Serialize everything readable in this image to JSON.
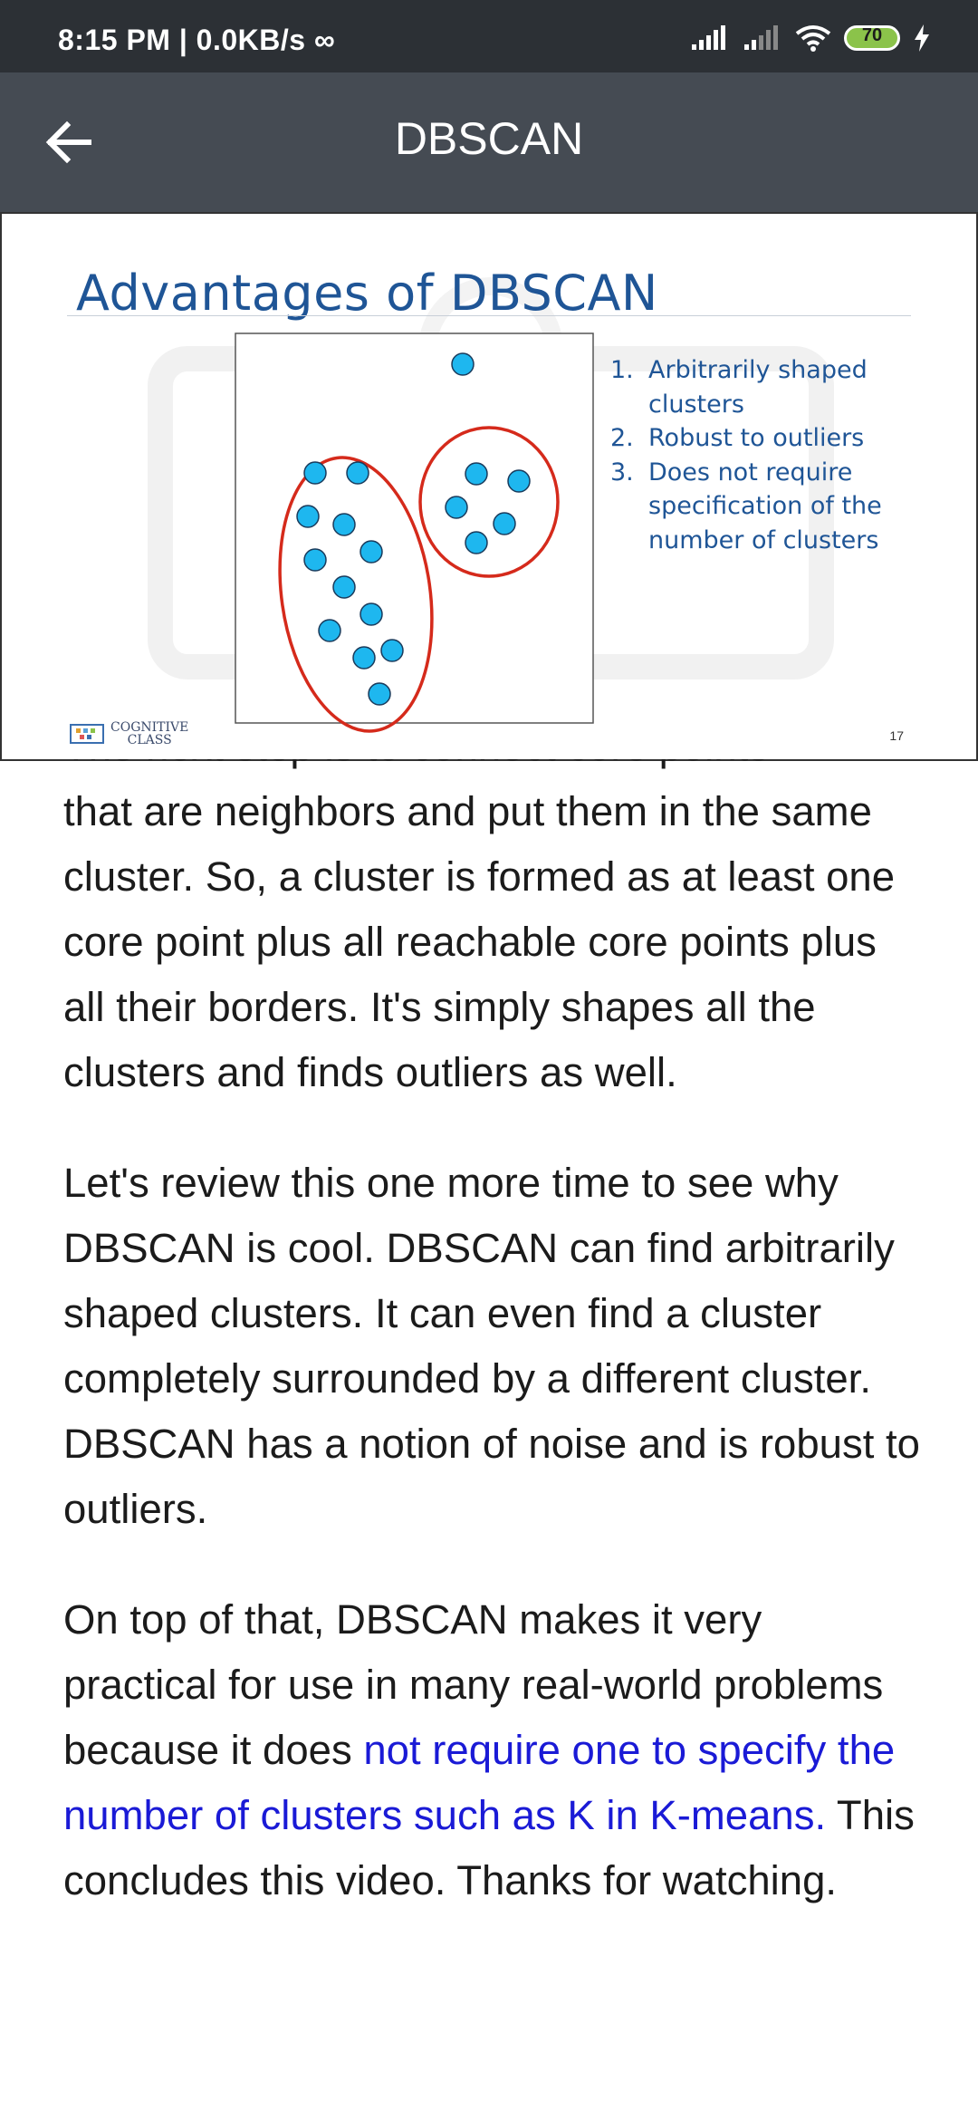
{
  "status_bar": {
    "time": "8:15 PM | 0.0KB/s ∞",
    "battery": "70",
    "icons": [
      "signal-icon",
      "signal-icon",
      "wifi-icon",
      "battery-icon",
      "charging-icon"
    ]
  },
  "app_bar": {
    "title": "DBSCAN",
    "back_icon": "arrow-left-icon"
  },
  "slide": {
    "title": "Advantages of DBSCAN",
    "list": [
      {
        "num": "1.",
        "text": "Arbitrarily shaped clusters"
      },
      {
        "num": "2.",
        "text": "Robust to outliers"
      },
      {
        "num": "3.",
        "text": "Does not require specification of the number of clusters"
      }
    ],
    "logo_line1": "COGNITIVE",
    "logo_line2": "CLASS",
    "page_number": "17",
    "colors": {
      "title": "#1f5596",
      "points": "#1eb7ef",
      "cluster_outline": "#d52a1b"
    }
  },
  "article": {
    "cut_line": "The next step is to connect core points",
    "p1": "that are neighbors and put them in the same cluster. So, a cluster is formed as at least one core point plus all reachable core points plus all their borders. It's simply shapes all the clusters and finds outliers as well.",
    "p2": "Let's review this one more time to see why DBSCAN is cool. DBSCAN can find arbitrarily shaped clusters. It can even find a cluster completely surrounded by a different cluster. DBSCAN has a notion of noise and is robust to outliers.",
    "p3_before": "On top of that, DBSCAN makes it very practical for use in many real-world problems because it does ",
    "p3_link": "not require one to specify the number of clusters such as K in K-means.",
    "p3_after": " This concludes this video. Thanks for watching.",
    "link_color": "#1a1ad6"
  }
}
